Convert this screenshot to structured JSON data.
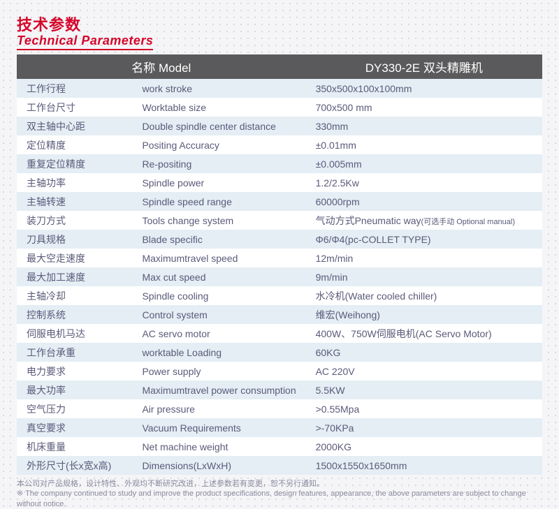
{
  "header": {
    "title_cn": "技术参数",
    "title_en": "Technical Parameters",
    "title_color": "#d5062a"
  },
  "table": {
    "header_bg": "#5a5a5c",
    "header_fg": "#ffffff",
    "row_even_bg": "#e4eef4",
    "row_odd_bg": "#ffffff",
    "text_color": "#5a5a7a",
    "columns": [
      "名称 Model",
      "DY330-2E 双头精雕机"
    ],
    "rows": [
      {
        "cn": "工作行程",
        "en": "work stroke",
        "val": "350x500x100x100mm"
      },
      {
        "cn": "工作台尺寸",
        "en": "Worktable size",
        "val": "700x500 mm"
      },
      {
        "cn": "双主轴中心距",
        "en": "Double spindle center distance",
        "val": "330mm"
      },
      {
        "cn": "定位精度",
        "en": "Positing Accuracy",
        "val": "±0.01mm"
      },
      {
        "cn": "重复定位精度",
        "en": "Re-positing",
        "val": "±0.005mm"
      },
      {
        "cn": "主轴功率",
        "en": "Spindle power",
        "val": "1.2/2.5Kw"
      },
      {
        "cn": "主轴转速",
        "en": "Spindle speed range",
        "val": "60000rpm"
      },
      {
        "cn": "装刀方式",
        "en": "Tools change system",
        "val": "气动方式Pneumatic way",
        "val_suffix": "(可选手动 Optional manual)"
      },
      {
        "cn": "刀具规格",
        "en": "Blade specific",
        "val": "Φ6/Φ4(pc-COLLET TYPE)"
      },
      {
        "cn": "最大空走速度",
        "en": "Maximumtravel speed",
        "val": "12m/min"
      },
      {
        "cn": "最大加工速度",
        "en": "Max cut speed",
        "val": "9m/min"
      },
      {
        "cn": "主轴冷却",
        "en": "Spindle cooling",
        "val": "水冷机(Water cooled chiller)"
      },
      {
        "cn": "控制系统",
        "en": "Control system",
        "val": "维宏(Weihong)"
      },
      {
        "cn": "伺服电机马达",
        "en": "AC servo motor",
        "val": "400W、750W伺服电机(AC Servo Motor)"
      },
      {
        "cn": "工作台承重",
        "en": "worktable Loading",
        "val": "60KG"
      },
      {
        "cn": "电力要求",
        "en": "Power supply",
        "val": "AC 220V"
      },
      {
        "cn": "最大功率",
        "en": "Maximumtravel power consumption",
        "val": "5.5KW"
      },
      {
        "cn": "空气压力",
        "en": "Air pressure",
        "val": ">0.55Mpa"
      },
      {
        "cn": "真空要求",
        "en": "Vacuum Requirements",
        "val": ">-70KPa"
      },
      {
        "cn": "机床重量",
        "en": "Net machine weight",
        "val": "2000KG"
      },
      {
        "cn": "外形尺寸(长x宽x高)",
        "en": "Dimensions(LxWxH)",
        "val": "1500x1550x1650mm"
      }
    ]
  },
  "footnote": {
    "line1": "本公司对产品规格，设计特性、外观均不断研究改进，上述参数若有变更，恕不另行通知。",
    "line2": "※ The company continued to study and improve the product specifications, design features, appearance, the above parameters are subject to change without notice.",
    "color": "#8a8aa0"
  }
}
